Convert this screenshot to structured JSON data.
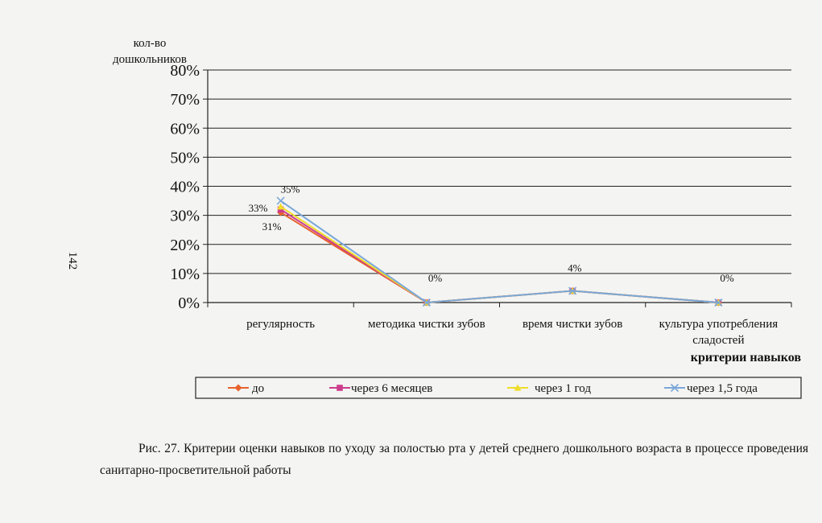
{
  "page_number": "142",
  "caption": "Рис. 27. Критерии оценки навыков по уходу за полостью рта у детей среднего дошкольного возраста в процессе проведения санитарно-просветительной работы",
  "colors": {
    "до": "#e8622c",
    "через 6 месяцев": "#cc3d8e",
    "через 1 год": "#f0dd2a",
    "через 1,5 года": "#7aa7d9"
  },
  "chart_data": {
    "type": "line",
    "ylabel_lines": [
      "кол-во",
      "дошкольников"
    ],
    "xlabel": "критерии навыков",
    "categories": [
      [
        "регулярность"
      ],
      [
        "методика чистки зубов"
      ],
      [
        "время чистки зубов"
      ],
      [
        "культура употребления",
        "сладостей"
      ]
    ],
    "ylim": [
      0,
      80
    ],
    "y_ticks": [
      "0%",
      "10%",
      "20%",
      "30%",
      "40%",
      "50%",
      "60%",
      "70%",
      "80%"
    ],
    "grid": true,
    "legend_position": "bottom",
    "series": [
      {
        "name": "до",
        "values": [
          31,
          0,
          4,
          0
        ],
        "marker": "diamond",
        "color": "#e8622c"
      },
      {
        "name": "через 6 месяцев",
        "values": [
          32,
          0,
          4,
          0
        ],
        "marker": "square",
        "color": "#cc3d8e"
      },
      {
        "name": "через 1 год",
        "values": [
          33,
          0,
          4,
          0
        ],
        "marker": "triangle",
        "color": "#f0dd2a"
      },
      {
        "name": "через 1,5 года",
        "values": [
          35,
          0,
          4,
          0
        ],
        "marker": "x",
        "color": "#7aa7d9"
      }
    ],
    "data_labels": [
      {
        "text": "35%",
        "category": 0,
        "value": 35
      },
      {
        "text": "33%",
        "category": 0,
        "value": 33
      },
      {
        "text": "31%",
        "category": 0,
        "value": 31
      },
      {
        "text": "0%",
        "category": 1,
        "value": 0
      },
      {
        "text": "4%",
        "category": 2,
        "value": 4
      },
      {
        "text": "0%",
        "category": 3,
        "value": 0
      }
    ]
  }
}
